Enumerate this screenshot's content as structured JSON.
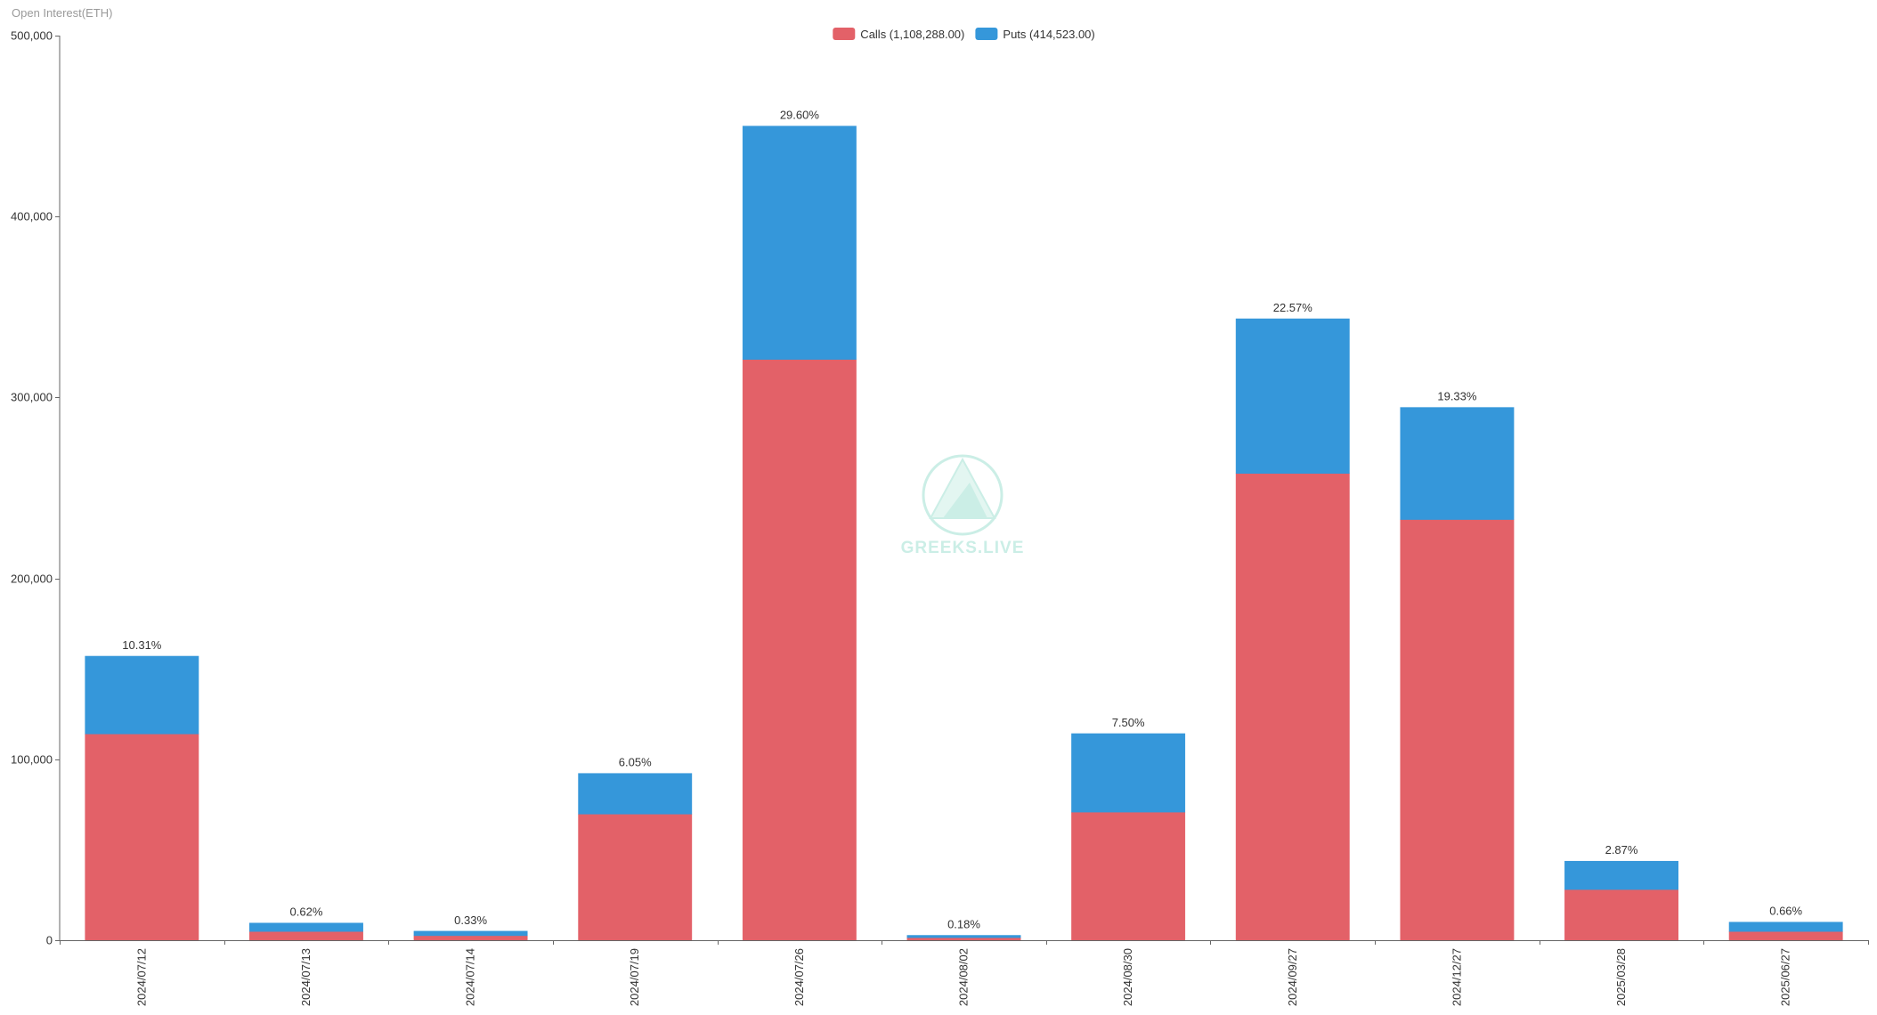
{
  "chart_data": {
    "type": "bar",
    "stacked": true,
    "ylabel": "Open Interest(ETH)",
    "ylim": [
      0,
      500000
    ],
    "yticks": [
      0,
      100000,
      200000,
      300000,
      400000,
      500000
    ],
    "ytick_labels": [
      "0",
      "100,000",
      "200,000",
      "300,000",
      "400,000",
      "500,000"
    ],
    "categories": [
      "2024/07/12",
      "2024/07/13",
      "2024/07/14",
      "2024/07/19",
      "2024/07/26",
      "2024/08/02",
      "2024/08/30",
      "2024/09/27",
      "2024/12/27",
      "2025/03/28",
      "2025/06/27"
    ],
    "series": [
      {
        "name": "Calls (1,108,288.00)",
        "color": "#e36168",
        "values": [
          114000,
          4800,
          2500,
          69700,
          321000,
          1400,
          70800,
          258000,
          232500,
          28000,
          4800
        ]
      },
      {
        "name": "Puts (414,523.00)",
        "color": "#3597da",
        "values": [
          43000,
          4700,
          2500,
          22500,
          129000,
          1300,
          43400,
          85500,
          62000,
          15700,
          5200
        ]
      }
    ],
    "data_labels": [
      "10.31%",
      "0.62%",
      "0.33%",
      "6.05%",
      "29.60%",
      "0.18%",
      "7.50%",
      "22.57%",
      "19.33%",
      "2.87%",
      "0.66%"
    ],
    "legend": "top-center",
    "grid": false
  },
  "watermark": {
    "text": "GREEKS.LIVE",
    "color": "#cbeee6"
  }
}
